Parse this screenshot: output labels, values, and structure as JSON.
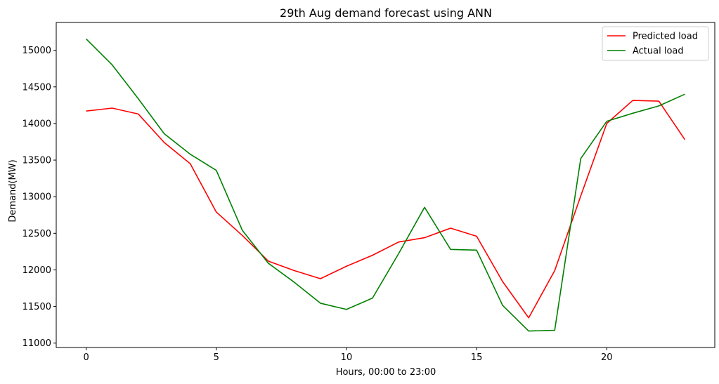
{
  "chart_data": {
    "type": "line",
    "title": "29th Aug demand forecast using ANN",
    "xlabel": "Hours, 00:00 to 23:00",
    "ylabel": "Demand(MW)",
    "xlim": [
      -1.15,
      24.15
    ],
    "ylim": [
      10940,
      15380
    ],
    "xticks": [
      0,
      5,
      10,
      15,
      20
    ],
    "yticks": [
      11000,
      11500,
      12000,
      12500,
      13000,
      13500,
      14000,
      14500,
      15000
    ],
    "x": [
      0,
      1,
      2,
      3,
      4,
      5,
      6,
      7,
      8,
      9,
      10,
      11,
      12,
      13,
      14,
      15,
      16,
      17,
      18,
      19,
      20,
      21,
      22,
      23
    ],
    "grid": false,
    "legend_position": "upper right",
    "series": [
      {
        "name": "Predicted load",
        "color": "#ff0000",
        "values": [
          14170,
          14210,
          14130,
          13740,
          13450,
          12790,
          12470,
          12120,
          11990,
          11880,
          12050,
          12200,
          12380,
          12440,
          12570,
          12460,
          11840,
          11345,
          11990,
          13010,
          14000,
          14315,
          14305,
          13780
        ]
      },
      {
        "name": "Actual load",
        "color": "#008000",
        "values": [
          15155,
          14800,
          14340,
          13860,
          13580,
          13360,
          12540,
          12090,
          11830,
          11545,
          11460,
          11615,
          12220,
          12855,
          12280,
          12270,
          11515,
          11165,
          11175,
          13520,
          14030,
          14140,
          14240,
          14400
        ]
      }
    ]
  }
}
